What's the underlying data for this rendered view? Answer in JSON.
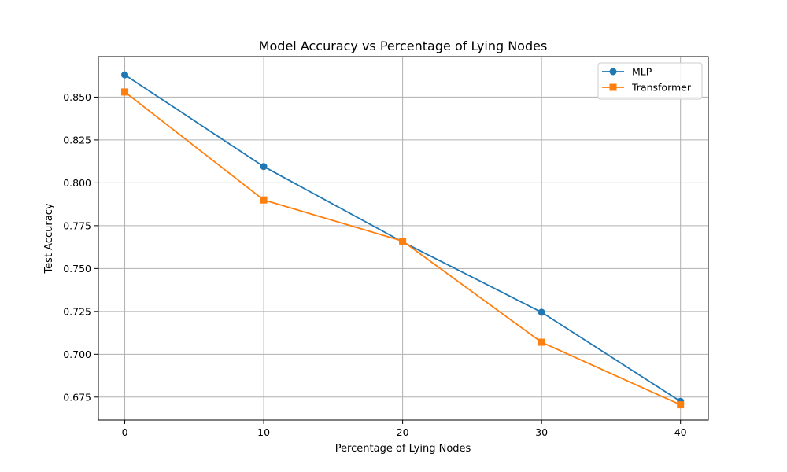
{
  "chart_data": {
    "type": "line",
    "title": "Model Accuracy vs Percentage of Lying Nodes",
    "xlabel": "Percentage of Lying Nodes",
    "ylabel": "Test Accuracy",
    "x": [
      0,
      10,
      20,
      30,
      40
    ],
    "xlim": [
      -1.9,
      42
    ],
    "ylim": [
      0.6616,
      0.8736
    ],
    "xticks": [
      0,
      10,
      20,
      30,
      40
    ],
    "xtick_labels": [
      "0",
      "10",
      "20",
      "30",
      "40"
    ],
    "yticks": [
      0.675,
      0.7,
      0.725,
      0.75,
      0.775,
      0.8,
      0.825,
      0.85
    ],
    "ytick_labels": [
      "0.675",
      "0.700",
      "0.725",
      "0.750",
      "0.775",
      "0.800",
      "0.825",
      "0.850"
    ],
    "grid": true,
    "legend_position": "top-right",
    "series": [
      {
        "name": "MLP",
        "values": [
          0.863,
          0.8095,
          0.7655,
          0.7245,
          0.6725
        ],
        "color": "#1f77b4",
        "marker": "circle"
      },
      {
        "name": "Transformer",
        "values": [
          0.853,
          0.79,
          0.766,
          0.707,
          0.6705
        ],
        "color": "#ff7f0e",
        "marker": "square"
      }
    ]
  }
}
